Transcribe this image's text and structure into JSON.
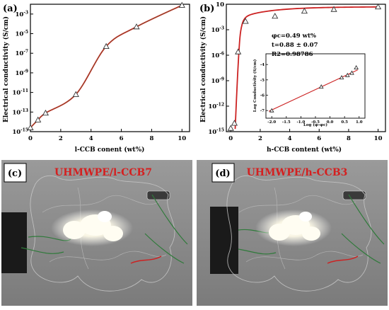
{
  "chart_data": [
    {
      "type": "scatter",
      "panel": "(a)",
      "xlabel": "l-CCB conent (wt%)",
      "ylabel": "Electrical conductivity (S/cm)",
      "xlim": [
        0,
        10.5
      ],
      "ylim_log10": [
        -15,
        -2
      ],
      "y_scale": "log",
      "x_ticks": [
        "0",
        "2",
        "4",
        "6",
        "8",
        "10"
      ],
      "y_ticks": [
        "10-15",
        "10-13",
        "10-11",
        "10-9",
        "10-7",
        "10-5",
        "10-3"
      ],
      "series": [
        {
          "marker": "triangle-open",
          "x": [
            0,
            0.5,
            1,
            3,
            5,
            7,
            10
          ],
          "y_log10": [
            -14.6,
            -13.8,
            -13.1,
            -11.2,
            -6.3,
            -4.3,
            -2.1
          ]
        }
      ],
      "fit_curve": {
        "color": "#cc2222"
      }
    },
    {
      "type": "scatter",
      "panel": "(b)",
      "xlabel": "h-CCB content (wt%)",
      "ylabel": "Electrical conductivity (S/cm)",
      "xlim": [
        -0.3,
        10.5
      ],
      "ylim_log10": [
        -15,
        0
      ],
      "y_scale": "log",
      "x_ticks": [
        "0",
        "2",
        "4",
        "6",
        "8",
        "10"
      ],
      "y_ticks": [
        "10-15",
        "10-12",
        "10-9",
        "10-6",
        "10-3",
        "10"
      ],
      "series": [
        {
          "marker": "triangle-open",
          "x": [
            0,
            0.25,
            0.5,
            1,
            3,
            5,
            7,
            10
          ],
          "y_log10": [
            -14.6,
            -14.0,
            -5.6,
            -2.0,
            -1.4,
            -0.8,
            -0.6,
            -0.3
          ]
        }
      ],
      "fit_curve": {
        "color": "#cc2222"
      },
      "inset": {
        "type": "scatter",
        "xlabel": "Log (φ-φc)",
        "ylabel": "Log Conductivity (S/cm)",
        "xlim": [
          -2.2,
          1.2
        ],
        "ylim": [
          -7.5,
          -3.3
        ],
        "x_ticks": [
          "-2.0",
          "-1.5",
          "-1.0",
          "-0.5",
          "0.0",
          "0.5",
          "1.0"
        ],
        "y_ticks": [
          "-7",
          "-6",
          "-5",
          "-4"
        ],
        "points": [
          {
            "x": -2.0,
            "y": -7.0
          },
          {
            "x": -0.3,
            "y": -5.45
          },
          {
            "x": 0.4,
            "y": -4.85
          },
          {
            "x": 0.6,
            "y": -4.7
          },
          {
            "x": 0.75,
            "y": -4.55
          },
          {
            "x": 0.9,
            "y": -4.2
          }
        ],
        "annotations": [
          "φc=0.49 wt%",
          "t=0.88 ± 0.07",
          "R2=0.98786"
        ]
      }
    }
  ],
  "photos": [
    {
      "label": "(c)",
      "title": "UHMWPE/l-CCB7"
    },
    {
      "label": "(d)",
      "title": "UHMWPE/h-CCB3"
    }
  ],
  "colors": {
    "curve": "#cc2222",
    "marker_stroke": "#333333",
    "photo_bg": "#8d8d8d",
    "photo_title": "#d42020"
  }
}
